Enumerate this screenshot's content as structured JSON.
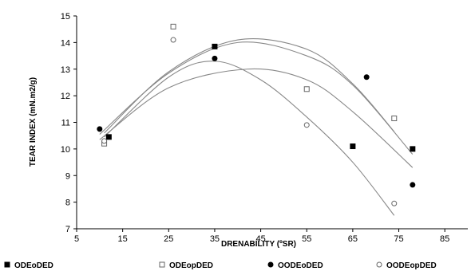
{
  "chart_data": {
    "type": "scatter",
    "xlabel": "DRENABILITY (ºSR)",
    "ylabel": "TEAR INDEX (mN.m2/g)",
    "xlim": [
      5,
      90
    ],
    "ylim": [
      7,
      15
    ],
    "xticks": [
      5,
      15,
      25,
      35,
      45,
      55,
      65,
      75,
      85
    ],
    "yticks": [
      7,
      8,
      9,
      10,
      11,
      12,
      13,
      14,
      15
    ],
    "grid": false,
    "legend_position": "bottom",
    "series": [
      {
        "name": "ODEoDED",
        "marker": "square-filled",
        "points": [
          [
            12,
            10.45
          ],
          [
            35,
            13.85
          ],
          [
            65,
            10.1
          ],
          [
            78,
            10.0
          ]
        ],
        "fit_range": [
          10,
          78
        ],
        "fit": [
          [
            10,
            10.55
          ],
          [
            25,
            12.85
          ],
          [
            40,
            14.0
          ],
          [
            55,
            13.5
          ],
          [
            65,
            12.4
          ],
          [
            78,
            9.8
          ]
        ]
      },
      {
        "name": "ODEopDED",
        "marker": "square-open",
        "points": [
          [
            11,
            10.2
          ],
          [
            26,
            14.6
          ],
          [
            55,
            12.25
          ],
          [
            74,
            11.15
          ]
        ],
        "fit_range": [
          11,
          74
        ],
        "fit": [
          [
            11,
            10.6
          ],
          [
            25,
            12.9
          ],
          [
            40,
            14.1
          ],
          [
            55,
            13.75
          ],
          [
            65,
            12.45
          ],
          [
            74,
            10.65
          ]
        ]
      },
      {
        "name": "OODEoDED",
        "marker": "circle-filled",
        "points": [
          [
            10,
            10.75
          ],
          [
            35,
            13.4
          ],
          [
            68,
            12.7
          ],
          [
            78,
            8.65
          ]
        ],
        "fit_range": [
          10,
          78
        ],
        "fit": [
          [
            10,
            10.35
          ],
          [
            25,
            12.3
          ],
          [
            42,
            13.0
          ],
          [
            55,
            12.6
          ],
          [
            65,
            11.4
          ],
          [
            78,
            9.3
          ]
        ]
      },
      {
        "name": "OODEopDED",
        "marker": "circle-open",
        "points": [
          [
            11,
            10.3
          ],
          [
            26,
            14.1
          ],
          [
            55,
            10.9
          ],
          [
            74,
            7.95
          ]
        ],
        "fit_range": [
          11,
          74
        ],
        "fit": [
          [
            11,
            10.45
          ],
          [
            25,
            12.7
          ],
          [
            35,
            13.3
          ],
          [
            45,
            12.6
          ],
          [
            55,
            11.2
          ],
          [
            65,
            9.5
          ],
          [
            74,
            7.5
          ]
        ]
      }
    ],
    "colors": {
      "marker": "#000000",
      "fit_line": "#888888",
      "frame": "#000000"
    }
  }
}
